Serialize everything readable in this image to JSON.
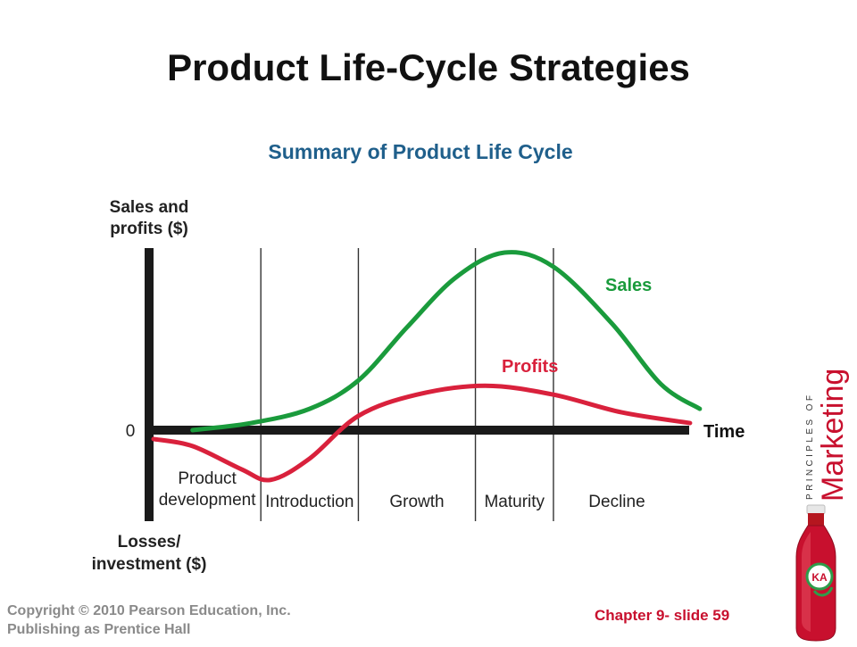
{
  "slide": {
    "title": "Product Life-Cycle Strategies"
  },
  "chart_data": {
    "type": "line",
    "title": "Summary of Product Life Cycle",
    "ylabel_top": [
      "Sales and",
      "profits ($)"
    ],
    "ylabel_bottom": [
      "Losses/",
      "investment ($)"
    ],
    "xlabel": "Time",
    "zero_label": "0",
    "stages": [
      [
        "Product",
        "development"
      ],
      [
        "Introduction"
      ],
      [
        "Growth"
      ],
      [
        "Maturity"
      ],
      [
        "Decline"
      ]
    ],
    "series": [
      {
        "name": "Sales",
        "color": "#1a9b3c",
        "points": [
          [
            0.2,
            0.0
          ],
          [
            0.5,
            0.04
          ],
          [
            0.8,
            0.12
          ],
          [
            1.05,
            0.28
          ],
          [
            1.3,
            0.58
          ],
          [
            1.55,
            0.86
          ],
          [
            1.8,
            1.0
          ],
          [
            2.05,
            0.92
          ],
          [
            2.35,
            0.6
          ],
          [
            2.6,
            0.26
          ],
          [
            2.8,
            0.12
          ]
        ]
      },
      {
        "name": "Profits",
        "color": "#d9213c",
        "points": [
          [
            0.0,
            -0.05
          ],
          [
            0.2,
            -0.09
          ],
          [
            0.45,
            -0.22
          ],
          [
            0.6,
            -0.28
          ],
          [
            0.8,
            -0.16
          ],
          [
            1.05,
            0.08
          ],
          [
            1.35,
            0.2
          ],
          [
            1.7,
            0.25
          ],
          [
            2.05,
            0.2
          ],
          [
            2.4,
            0.1
          ],
          [
            2.75,
            0.04
          ]
        ]
      }
    ],
    "stage_boundaries": [
      0.0,
      0.55,
      1.05,
      1.65,
      2.05,
      2.7
    ],
    "xlim": [
      0.0,
      2.7
    ],
    "ylim": [
      -0.5,
      1.0
    ]
  },
  "footer": {
    "copyright_line1": "Copyright © 2010 Pearson Education, Inc.",
    "copyright_line2": "Publishing as Prentice Hall",
    "slide_number": "Chapter 9- slide 59"
  },
  "brand": {
    "line1": "PRINCIPLES OF",
    "line2": "Marketing",
    "bottle_label": "KA",
    "icon": "bottle-icon",
    "color": "#c8102e"
  }
}
